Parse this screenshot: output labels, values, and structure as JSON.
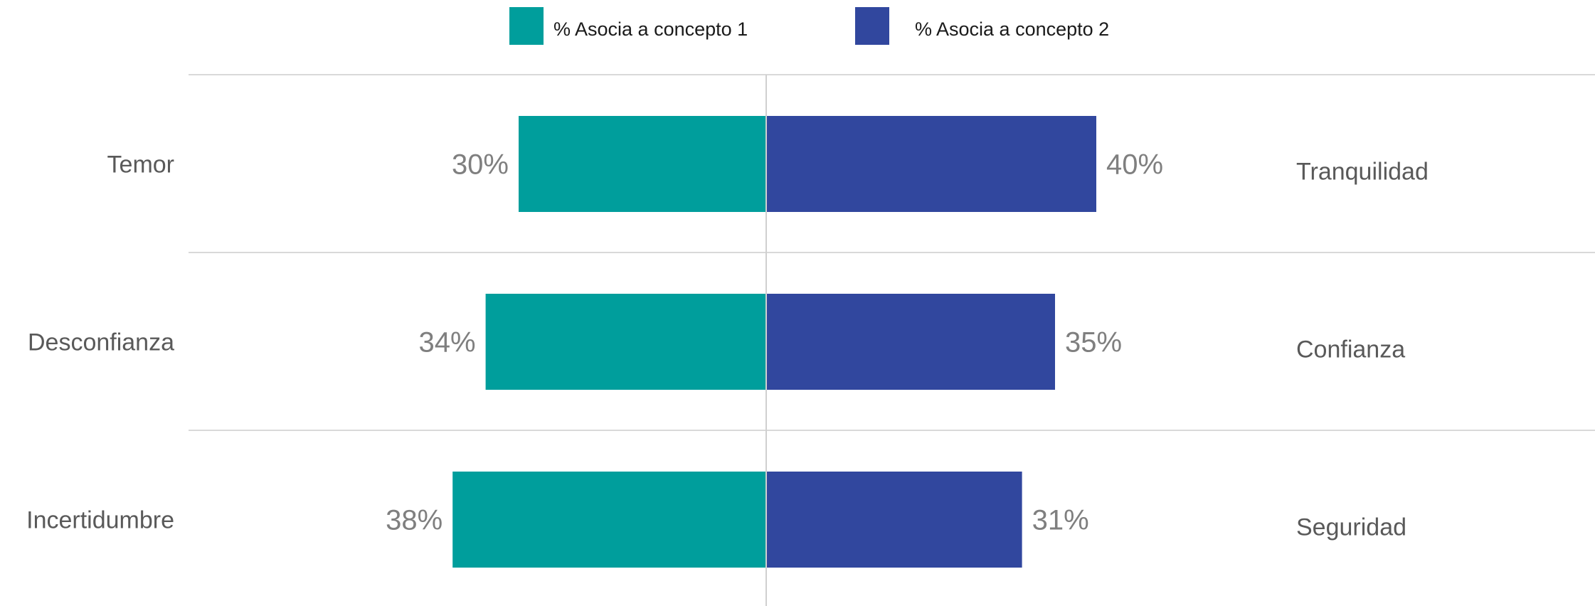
{
  "chart_data": {
    "type": "bar",
    "orientation": "horizontal-diverging",
    "legend": {
      "placement": "top-center",
      "entries": [
        {
          "label": "% Asocia a concepto 1",
          "color": "#009e9c"
        },
        {
          "label": "% Asocia a concepto 2",
          "color": "#31479e"
        }
      ]
    },
    "categories": [
      {
        "left_label": "Temor",
        "right_label": "Tranquilidad"
      },
      {
        "left_label": "Desconfianza",
        "right_label": "Confianza"
      },
      {
        "left_label": "Incertidumbre",
        "right_label": "Seguridad"
      }
    ],
    "series": [
      {
        "name": "% Asocia a concepto 1",
        "color": "#009e9c",
        "values": [
          30,
          34,
          38
        ],
        "labels": [
          "30%",
          "34%",
          "38%"
        ]
      },
      {
        "name": "% Asocia a concepto 2",
        "color": "#31479e",
        "values": [
          40,
          35,
          31
        ],
        "labels": [
          "40%",
          "35%",
          "31%"
        ]
      }
    ],
    "unit": "%",
    "grid": true
  }
}
